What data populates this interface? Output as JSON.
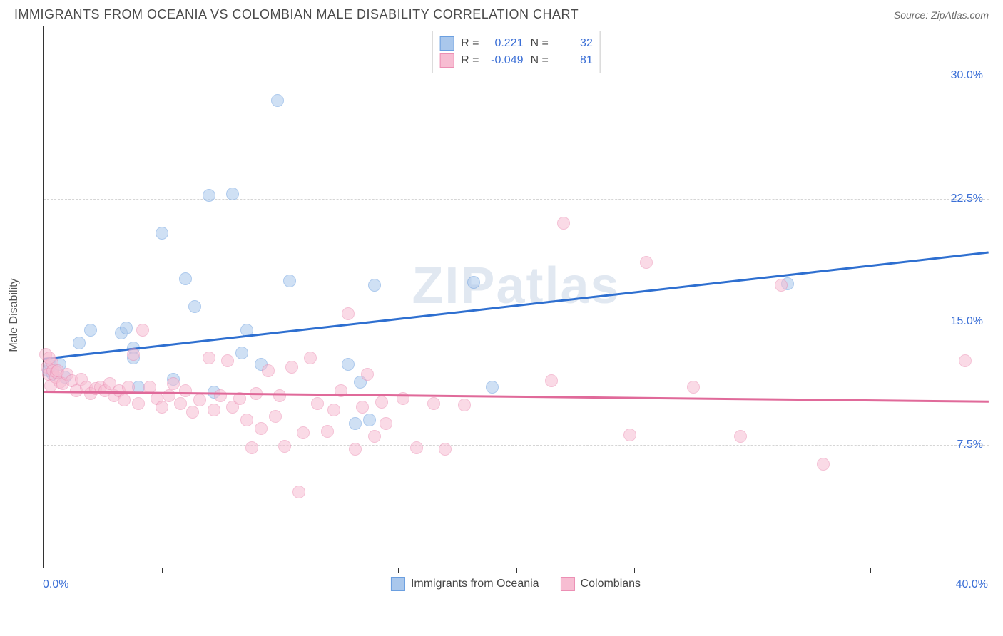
{
  "header": {
    "title": "IMMIGRANTS FROM OCEANIA VS COLOMBIAN MALE DISABILITY CORRELATION CHART",
    "source_prefix": "Source: ",
    "source_name": "ZipAtlas.com"
  },
  "ylabel": "Male Disability",
  "watermark": "ZIPatlas",
  "chart": {
    "type": "scatter",
    "xlim": [
      0,
      40
    ],
    "ylim": [
      0,
      33
    ],
    "x_tick_positions": [
      0,
      5,
      10,
      15,
      20,
      25,
      30,
      35,
      40
    ],
    "x_tick_labels_shown": {
      "0": "0.0%",
      "40": "40.0%"
    },
    "y_gridlines": [
      7.5,
      15.0,
      22.5,
      30.0
    ],
    "y_tick_labels": {
      "7.5": "7.5%",
      "15.0": "15.0%",
      "22.5": "22.5%",
      "30.0": "30.0%"
    },
    "background_color": "#ffffff",
    "grid_color": "#d5d5d5",
    "axis_color": "#333333",
    "tick_label_color": "#3b6fd6",
    "marker_radius": 9,
    "marker_opacity": 0.55,
    "series": [
      {
        "name": "Immigrants from Oceania",
        "color_fill": "#a9c7ec",
        "color_border": "#6b9fe0",
        "regression_color": "#2e6fd0",
        "regression": {
          "y_at_x0": 12.8,
          "y_at_x40": 19.3
        },
        "stats": {
          "R": "0.221",
          "N": "32"
        },
        "points": [
          [
            0.2,
            12.0
          ],
          [
            0.3,
            12.3
          ],
          [
            0.4,
            11.8
          ],
          [
            0.7,
            12.4
          ],
          [
            0.9,
            11.6
          ],
          [
            1.5,
            13.7
          ],
          [
            2.0,
            14.5
          ],
          [
            3.3,
            14.3
          ],
          [
            3.5,
            14.6
          ],
          [
            3.8,
            13.4
          ],
          [
            3.8,
            12.8
          ],
          [
            4.0,
            11.0
          ],
          [
            5.0,
            20.4
          ],
          [
            5.5,
            11.5
          ],
          [
            6.0,
            17.6
          ],
          [
            6.4,
            15.9
          ],
          [
            7.0,
            22.7
          ],
          [
            7.2,
            10.7
          ],
          [
            8.0,
            22.8
          ],
          [
            8.4,
            13.1
          ],
          [
            8.6,
            14.5
          ],
          [
            9.2,
            12.4
          ],
          [
            9.9,
            28.5
          ],
          [
            10.4,
            17.5
          ],
          [
            12.9,
            12.4
          ],
          [
            13.2,
            8.8
          ],
          [
            13.4,
            11.3
          ],
          [
            13.8,
            9.0
          ],
          [
            14.0,
            17.2
          ],
          [
            18.2,
            17.4
          ],
          [
            19.0,
            11.0
          ],
          [
            31.5,
            17.3
          ]
        ]
      },
      {
        "name": "Colombians",
        "color_fill": "#f7bdd2",
        "color_border": "#ec8fb4",
        "regression_color": "#e06a9a",
        "regression": {
          "y_at_x0": 10.8,
          "y_at_x40": 10.2
        },
        "stats": {
          "R": "-0.049",
          "N": "81"
        },
        "points": [
          [
            0.1,
            13.0
          ],
          [
            0.15,
            12.2
          ],
          [
            0.2,
            11.8
          ],
          [
            0.3,
            11.1
          ],
          [
            0.35,
            12.5
          ],
          [
            0.4,
            12.0
          ],
          [
            0.5,
            11.6
          ],
          [
            0.55,
            11.9
          ],
          [
            0.6,
            12.0
          ],
          [
            0.7,
            11.3
          ],
          [
            0.8,
            11.2
          ],
          [
            1.0,
            11.8
          ],
          [
            1.2,
            11.4
          ],
          [
            1.4,
            10.8
          ],
          [
            1.6,
            11.5
          ],
          [
            1.8,
            11.0
          ],
          [
            2.0,
            10.6
          ],
          [
            2.2,
            10.9
          ],
          [
            2.4,
            11.0
          ],
          [
            2.6,
            10.8
          ],
          [
            2.8,
            11.2
          ],
          [
            3.0,
            10.5
          ],
          [
            3.2,
            10.8
          ],
          [
            3.4,
            10.2
          ],
          [
            3.6,
            11.0
          ],
          [
            3.8,
            13.0
          ],
          [
            4.0,
            10.0
          ],
          [
            4.2,
            14.5
          ],
          [
            4.5,
            11.0
          ],
          [
            4.8,
            10.3
          ],
          [
            5.0,
            9.8
          ],
          [
            5.3,
            10.5
          ],
          [
            5.5,
            11.2
          ],
          [
            5.8,
            10.0
          ],
          [
            6.0,
            10.8
          ],
          [
            6.3,
            9.5
          ],
          [
            6.6,
            10.2
          ],
          [
            7.0,
            12.8
          ],
          [
            7.2,
            9.6
          ],
          [
            7.5,
            10.5
          ],
          [
            7.8,
            12.6
          ],
          [
            8.0,
            9.8
          ],
          [
            8.3,
            10.3
          ],
          [
            8.6,
            9.0
          ],
          [
            8.8,
            7.3
          ],
          [
            9.0,
            10.6
          ],
          [
            9.2,
            8.5
          ],
          [
            9.5,
            12.0
          ],
          [
            9.8,
            9.2
          ],
          [
            10.0,
            10.5
          ],
          [
            10.2,
            7.4
          ],
          [
            10.5,
            12.2
          ],
          [
            10.8,
            4.6
          ],
          [
            11.0,
            8.2
          ],
          [
            11.3,
            12.8
          ],
          [
            11.6,
            10.0
          ],
          [
            12.0,
            8.3
          ],
          [
            12.3,
            9.6
          ],
          [
            12.6,
            10.8
          ],
          [
            12.9,
            15.5
          ],
          [
            13.2,
            7.2
          ],
          [
            13.5,
            9.8
          ],
          [
            13.7,
            11.8
          ],
          [
            14.0,
            8.0
          ],
          [
            14.3,
            10.1
          ],
          [
            14.5,
            8.8
          ],
          [
            15.2,
            10.3
          ],
          [
            15.8,
            7.3
          ],
          [
            16.5,
            10.0
          ],
          [
            17.0,
            7.2
          ],
          [
            17.8,
            9.9
          ],
          [
            21.5,
            11.4
          ],
          [
            22.0,
            21.0
          ],
          [
            24.8,
            8.1
          ],
          [
            25.5,
            18.6
          ],
          [
            27.5,
            11.0
          ],
          [
            29.5,
            8.0
          ],
          [
            31.2,
            17.2
          ],
          [
            33.0,
            6.3
          ],
          [
            39.0,
            12.6
          ],
          [
            0.25,
            12.8
          ]
        ]
      }
    ]
  },
  "legend_top": {
    "R_label": "R =",
    "N_label": "N ="
  },
  "legend_bottom": {
    "items": [
      "Immigrants from Oceania",
      "Colombians"
    ]
  }
}
